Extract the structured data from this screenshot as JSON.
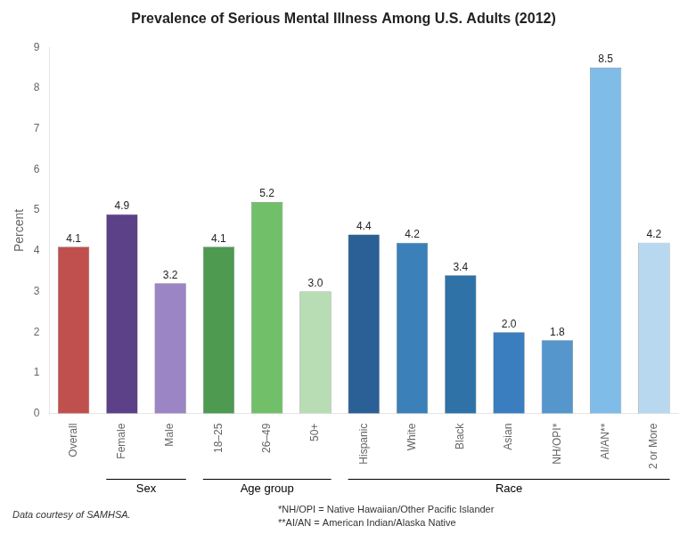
{
  "chart_data": {
    "type": "bar",
    "title": "Prevalence of Serious Mental Illness Among U.S. Adults (2012)",
    "ylabel": "Percent",
    "categories": [
      "Overall",
      "Female",
      "Male",
      "18–25",
      "26–49",
      "50+",
      "Hispanic",
      "White",
      "Black",
      "Asian",
      "NH/OPI*",
      "AI/AN**",
      "2 or More"
    ],
    "values": [
      4.1,
      4.9,
      3.2,
      4.1,
      5.2,
      3.0,
      4.4,
      4.2,
      3.4,
      2.0,
      1.8,
      8.5,
      4.2
    ],
    "value_labels": [
      "4.1",
      "4.9",
      "3.2",
      "4.1",
      "5.2",
      "3.0",
      "4.4",
      "4.2",
      "3.4",
      "2.0",
      "1.8",
      "8.5",
      "4.2"
    ],
    "colors": [
      "#c0504d",
      "#5c4088",
      "#9b85c4",
      "#4e9a51",
      "#72bf6a",
      "#b8ddb4",
      "#2b6097",
      "#3b80b8",
      "#2e72a8",
      "#3a7ebf",
      "#5596cc",
      "#7fbce8",
      "#b8d8ef"
    ],
    "groups": [
      {
        "label": "Sex",
        "categories": [
          "Female",
          "Male"
        ]
      },
      {
        "label": "Age group",
        "categories": [
          "18–25",
          "26–49",
          "50+"
        ]
      },
      {
        "label": "Race",
        "categories": [
          "Hispanic",
          "White",
          "Black",
          "Asian",
          "NH/OPI*",
          "AI/AN**",
          "2 or More"
        ]
      }
    ],
    "annotations": [
      "Data courtesy of SAMHSA.",
      "*NH/OPI = Native Hawaiian/Other Pacific Islander",
      "**AI/AN = American Indian/Alaska Native"
    ],
    "ylim": [
      0,
      9
    ],
    "yticks": [
      0,
      1,
      2,
      3,
      4,
      5,
      6,
      7,
      8,
      9
    ],
    "grid": false,
    "data_labels": true
  }
}
